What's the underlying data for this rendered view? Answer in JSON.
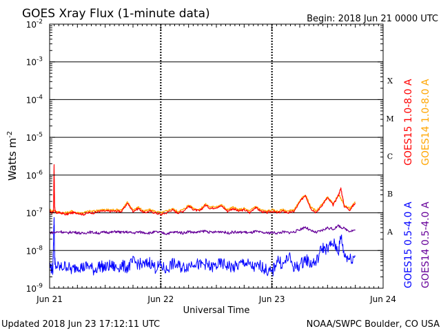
{
  "chart_data": {
    "type": "line",
    "title": "GOES Xray Flux (1-minute data)",
    "begin_label": "Begin:  2018 Jun 21 0000 UTC",
    "ylabel": "Watts m",
    "ylabel_sup": "-2",
    "xlabel": "Universal Time",
    "y_scale": "log",
    "ylim": [
      1e-09,
      0.01
    ],
    "y_ticks": [
      {
        "base": "10",
        "exp": "-2",
        "value": 0.01
      },
      {
        "base": "10",
        "exp": "-3",
        "value": 0.001
      },
      {
        "base": "10",
        "exp": "-4",
        "value": 0.0001
      },
      {
        "base": "10",
        "exp": "-5",
        "value": 1e-05
      },
      {
        "base": "10",
        "exp": "-6",
        "value": 1e-06
      },
      {
        "base": "10",
        "exp": "-7",
        "value": 1e-07
      },
      {
        "base": "10",
        "exp": "-8",
        "value": 1e-08
      },
      {
        "base": "10",
        "exp": "-9",
        "value": 1e-09
      }
    ],
    "x_range_days": [
      0,
      3
    ],
    "x_ticks": [
      {
        "label": "Jun 21",
        "day": 0
      },
      {
        "label": "Jun 22",
        "day": 1
      },
      {
        "label": "Jun 23",
        "day": 2
      },
      {
        "label": "Jun 24",
        "day": 3
      }
    ],
    "flare_classes": [
      {
        "label": "X",
        "low": 0.0001
      },
      {
        "label": "M",
        "low": 1e-05
      },
      {
        "label": "C",
        "low": 1e-06
      },
      {
        "label": "B",
        "low": 1e-07
      },
      {
        "label": "A",
        "low": 1e-08
      }
    ],
    "grid": true,
    "legend_position": "right",
    "series": [
      {
        "name": "GOES15 1.0-8.0 A",
        "color": "#ff0000",
        "x": [
          0,
          0.02,
          0.035,
          0.04,
          0.045,
          0.05,
          0.06,
          0.1,
          0.15,
          0.2,
          0.25,
          0.3,
          0.35,
          0.4,
          0.45,
          0.5,
          0.55,
          0.6,
          0.65,
          0.7,
          0.75,
          0.8,
          0.85,
          0.9,
          0.95,
          1.0,
          1.05,
          1.1,
          1.15,
          1.2,
          1.25,
          1.3,
          1.35,
          1.4,
          1.45,
          1.5,
          1.55,
          1.6,
          1.65,
          1.7,
          1.75,
          1.8,
          1.85,
          1.9,
          1.95,
          2.0,
          2.05,
          2.1,
          2.15,
          2.2,
          2.25,
          2.3,
          2.35,
          2.4,
          2.45,
          2.5,
          2.55,
          2.6,
          2.62,
          2.65,
          2.7,
          2.75
        ],
        "y": [
          1.1e-07,
          1e-07,
          1.1e-07,
          2e-06,
          1.5e-07,
          1.1e-07,
          1e-07,
          1e-07,
          9e-08,
          1e-07,
          1e-07,
          9e-08,
          1e-07,
          1e-07,
          1.1e-07,
          1.1e-07,
          1.1e-07,
          1.1e-07,
          1.1e-07,
          1.8e-07,
          1.1e-07,
          1.3e-07,
          1e-07,
          1.1e-07,
          1e-07,
          9e-08,
          1e-07,
          1.2e-07,
          1e-07,
          1.1e-07,
          1.5e-07,
          1.2e-07,
          1.1e-07,
          1.6e-07,
          1.3e-07,
          1.4e-07,
          1.5e-07,
          1.1e-07,
          1.3e-07,
          1.1e-07,
          1.2e-07,
          1e-07,
          1.4e-07,
          1.1e-07,
          1e-07,
          1.1e-07,
          1e-07,
          1.1e-07,
          1e-07,
          1.1e-07,
          1.9e-07,
          3e-07,
          1.3e-07,
          1e-07,
          1.6e-07,
          2.5e-07,
          1.6e-07,
          3e-07,
          4.5e-07,
          1.5e-07,
          1.2e-07,
          1.8e-07
        ]
      },
      {
        "name": "GOES14 1.0-8.0 A",
        "color": "#ffa500",
        "x": [
          0,
          0.05,
          0.1,
          0.15,
          0.2,
          0.25,
          0.3,
          0.35,
          0.4,
          0.45,
          0.5,
          0.55,
          0.6,
          0.65,
          0.7,
          0.75,
          0.8,
          0.85,
          0.9,
          0.95,
          1.0,
          1.05,
          1.1,
          1.15,
          1.2,
          1.25,
          1.3,
          1.35,
          1.4,
          1.45,
          1.5,
          1.55,
          1.6,
          1.65,
          1.7,
          1.75,
          1.8,
          1.85,
          1.9,
          1.95,
          2.0,
          2.05,
          2.1,
          2.15,
          2.2,
          2.25,
          2.3,
          2.35,
          2.4,
          2.45,
          2.5,
          2.55,
          2.6,
          2.65,
          2.7,
          2.75
        ],
        "y": [
          1.2e-07,
          1.1e-07,
          1e-07,
          1e-07,
          1.1e-07,
          1e-07,
          1e-07,
          1.1e-07,
          1.1e-07,
          1.2e-07,
          1.2e-07,
          1.2e-07,
          1.2e-07,
          1.2e-07,
          1.9e-07,
          1.2e-07,
          1.4e-07,
          1.1e-07,
          1.2e-07,
          1.1e-07,
          1e-07,
          1.1e-07,
          1.3e-07,
          1.1e-07,
          1.2e-07,
          1.6e-07,
          1.3e-07,
          1.2e-07,
          1.7e-07,
          1.4e-07,
          1.5e-07,
          1.6e-07,
          1.2e-07,
          1.4e-07,
          1.2e-07,
          1.3e-07,
          1.1e-07,
          1.5e-07,
          1.2e-07,
          1.1e-07,
          1.2e-07,
          1.1e-07,
          1.2e-07,
          1.1e-07,
          1.2e-07,
          2e-07,
          3.1e-07,
          1.4e-07,
          1.1e-07,
          1.7e-07,
          2.6e-07,
          1.7e-07,
          3.1e-07,
          1.6e-07,
          1.3e-07,
          1.9e-07
        ]
      },
      {
        "name": "GOES15 0.5-4.0 A",
        "color": "#0000ff",
        "x": [
          0,
          0.03,
          0.04,
          0.045,
          0.05,
          0.1,
          0.15,
          0.2,
          0.25,
          0.3,
          0.35,
          0.4,
          0.45,
          0.5,
          0.55,
          0.6,
          0.65,
          0.7,
          0.75,
          0.8,
          0.85,
          0.9,
          0.95,
          1.0,
          1.05,
          1.1,
          1.15,
          1.2,
          1.25,
          1.3,
          1.35,
          1.4,
          1.45,
          1.5,
          1.55,
          1.6,
          1.65,
          1.7,
          1.75,
          1.8,
          1.85,
          1.9,
          1.95,
          2.0,
          2.05,
          2.1,
          2.15,
          2.2,
          2.25,
          2.3,
          2.35,
          2.4,
          2.45,
          2.5,
          2.55,
          2.6,
          2.62,
          2.65,
          2.7,
          2.75
        ],
        "y": [
          4e-09,
          3e-09,
          1e-07,
          8e-09,
          4e-09,
          3.5e-09,
          4e-09,
          3e-09,
          4e-09,
          3.5e-09,
          4e-09,
          3e-09,
          4e-09,
          3.5e-09,
          4e-09,
          3.5e-09,
          4e-09,
          3.5e-09,
          5e-09,
          4.5e-09,
          4e-09,
          5e-09,
          3.5e-09,
          4e-09,
          3e-09,
          4.5e-09,
          4e-09,
          3.5e-09,
          4e-09,
          5e-09,
          4e-09,
          4.5e-09,
          3.5e-09,
          4e-09,
          4.5e-09,
          4e-09,
          3.5e-09,
          4e-09,
          5e-09,
          4e-09,
          3.5e-09,
          4e-09,
          3e-09,
          2.5e-09,
          6e-09,
          4e-09,
          7e-09,
          3.5e-09,
          4e-09,
          6e-09,
          4.5e-09,
          5e-09,
          1.2e-08,
          1.1e-08,
          1.6e-08,
          1e-08,
          2.5e-08,
          8e-09,
          6e-09,
          7e-09
        ]
      },
      {
        "name": "GOES14 0.5-4.0 A",
        "color": "#660099",
        "x": [
          0,
          0.05,
          0.1,
          0.15,
          0.2,
          0.25,
          0.3,
          0.35,
          0.4,
          0.45,
          0.5,
          0.55,
          0.6,
          0.65,
          0.7,
          0.75,
          0.8,
          0.85,
          0.9,
          0.95,
          1.0,
          1.05,
          1.1,
          1.15,
          1.2,
          1.25,
          1.3,
          1.35,
          1.4,
          1.45,
          1.5,
          1.55,
          1.6,
          1.65,
          1.7,
          1.75,
          1.8,
          1.85,
          1.9,
          1.95,
          2.0,
          2.05,
          2.1,
          2.15,
          2.2,
          2.25,
          2.3,
          2.35,
          2.4,
          2.45,
          2.5,
          2.55,
          2.6,
          2.65,
          2.7,
          2.75
        ],
        "y": [
          3e-08,
          3e-08,
          3.2e-08,
          2.9e-08,
          3.1e-08,
          3e-08,
          2.8e-08,
          3.1e-08,
          3e-08,
          2.9e-08,
          3.1e-08,
          3e-08,
          3.2e-08,
          3e-08,
          3.1e-08,
          2.9e-08,
          3.1e-08,
          3e-08,
          2.9e-08,
          3.1e-08,
          3e-08,
          2.8e-08,
          3e-08,
          3.1e-08,
          2.9e-08,
          3.2e-08,
          3e-08,
          3.1e-08,
          3.3e-08,
          3e-08,
          3.1e-08,
          3.2e-08,
          2.9e-08,
          3.1e-08,
          3e-08,
          3.1e-08,
          2.9e-08,
          3.2e-08,
          3e-08,
          2.9e-08,
          3e-08,
          2.9e-08,
          3.1e-08,
          3e-08,
          3.1e-08,
          3.6e-08,
          4.2e-08,
          3.3e-08,
          3e-08,
          3.4e-08,
          4e-08,
          3.7e-08,
          4.5e-08,
          3.8e-08,
          3.3e-08,
          3.5e-08
        ]
      }
    ]
  },
  "footer": {
    "updated": "Updated 2018 Jun 23 17:12:11 UTC",
    "source": "NOAA/SWPC Boulder, CO USA"
  }
}
